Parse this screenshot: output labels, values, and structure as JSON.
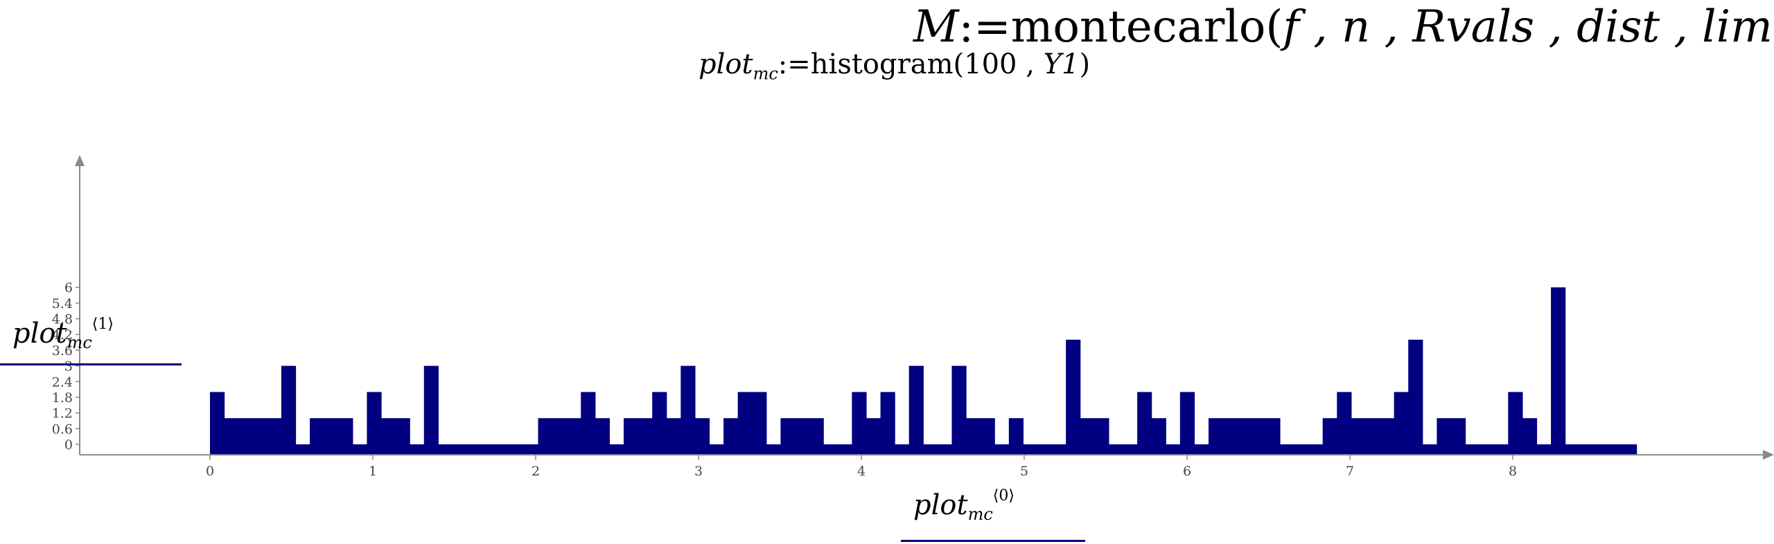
{
  "equations": {
    "montecarlo": {
      "lhs": "M",
      "assign": ":=",
      "func": "montecarlo",
      "args": "f , n , Rvals , dist , lim"
    },
    "histogram": {
      "lhs_base": "plot",
      "lhs_sub": "mc",
      "assign": ":=",
      "func": "histogram",
      "args_num": "100",
      "args_var": "Y1"
    }
  },
  "axis_labels": {
    "y": {
      "base": "plot",
      "sub": "mc",
      "sup": "⟨1⟩"
    },
    "x": {
      "base": "plot",
      "sub": "mc",
      "sup": "⟨0⟩"
    }
  },
  "colors": {
    "bars": "#000080",
    "axis": "#888888",
    "label_underline": "#000080"
  },
  "chart_data": {
    "type": "bar",
    "xlim": [
      -0.8,
      8.8
    ],
    "ylim": [
      -0.4,
      6.3
    ],
    "x_ticks": [
      "0",
      "1",
      "2",
      "3",
      "4",
      "5",
      "6",
      "7",
      "8"
    ],
    "y_ticks": [
      "0",
      "0.6",
      "1.2",
      "1.8",
      "2.4",
      "3",
      "3.6",
      "4.2",
      "4.8",
      "5.4",
      "6"
    ],
    "bin_start": 0.0,
    "bin_width": 0.0876,
    "values": [
      2,
      1,
      1,
      1,
      1,
      3,
      0,
      1,
      1,
      1,
      0,
      2,
      1,
      1,
      0,
      3,
      0,
      0,
      0,
      0,
      0,
      0,
      0,
      1,
      1,
      1,
      2,
      1,
      0,
      1,
      1,
      2,
      1,
      3,
      1,
      0,
      1,
      2,
      2,
      0,
      1,
      1,
      1,
      0,
      0,
      2,
      1,
      2,
      0,
      3,
      0,
      0,
      3,
      1,
      1,
      0,
      1,
      0,
      0,
      0,
      4,
      1,
      1,
      0,
      0,
      2,
      1,
      0,
      2,
      0,
      1,
      1,
      1,
      1,
      1,
      0,
      0,
      0,
      1,
      2,
      1,
      1,
      1,
      2,
      4,
      0,
      1,
      1,
      0,
      0,
      0,
      2,
      1,
      0,
      6,
      0,
      0,
      0,
      0,
      0
    ]
  }
}
